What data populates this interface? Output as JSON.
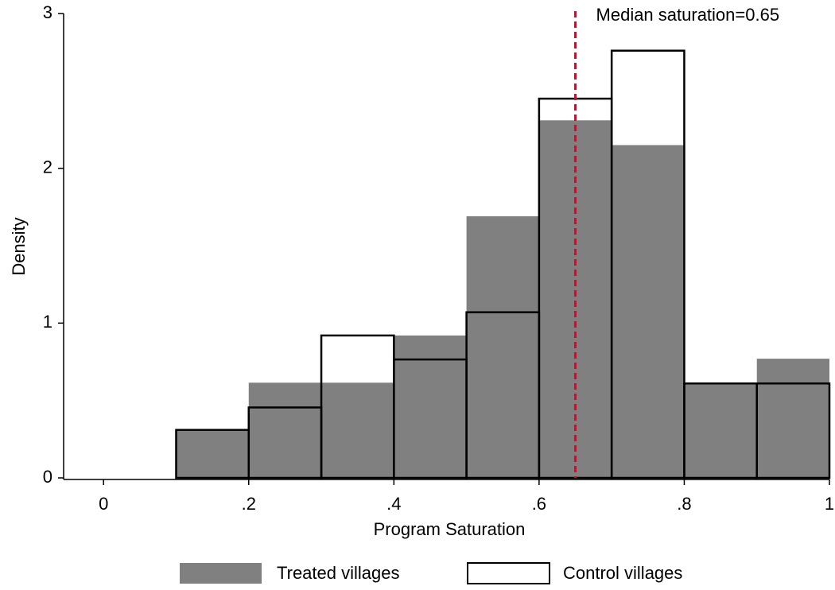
{
  "chart_data": {
    "type": "histogram",
    "x_label": "Program Saturation",
    "y_label": "Density",
    "bins": [
      0.1,
      0.2,
      0.3,
      0.4,
      0.5,
      0.6,
      0.7,
      0.8,
      0.9,
      1.0
    ],
    "series": [
      {
        "name": "Treated villages",
        "color": "#808080",
        "style": "filled",
        "values": [
          0.31,
          0.615,
          0.615,
          0.92,
          1.69,
          2.31,
          2.15,
          0.61,
          0.77
        ]
      },
      {
        "name": "Control villages",
        "color": "#000000",
        "style": "outline",
        "values": [
          0.31,
          0.455,
          0.92,
          0.765,
          1.07,
          2.45,
          2.76,
          0.61,
          0.61
        ]
      }
    ],
    "median_line": {
      "value": 0.65,
      "label": "Median saturation=0.65",
      "color": "#c8102e"
    },
    "xlim": [
      -0.055,
      1
    ],
    "ylim": [
      0,
      3
    ],
    "xticks": [
      0,
      {
        "value": 0.2,
        "label": ".2"
      },
      {
        "value": 0.4,
        "label": ".4"
      },
      {
        "value": 0.6,
        "label": ".6"
      },
      {
        "value": 0.8,
        "label": ".8"
      },
      1
    ],
    "yticks": [
      0,
      1,
      2,
      3
    ]
  }
}
